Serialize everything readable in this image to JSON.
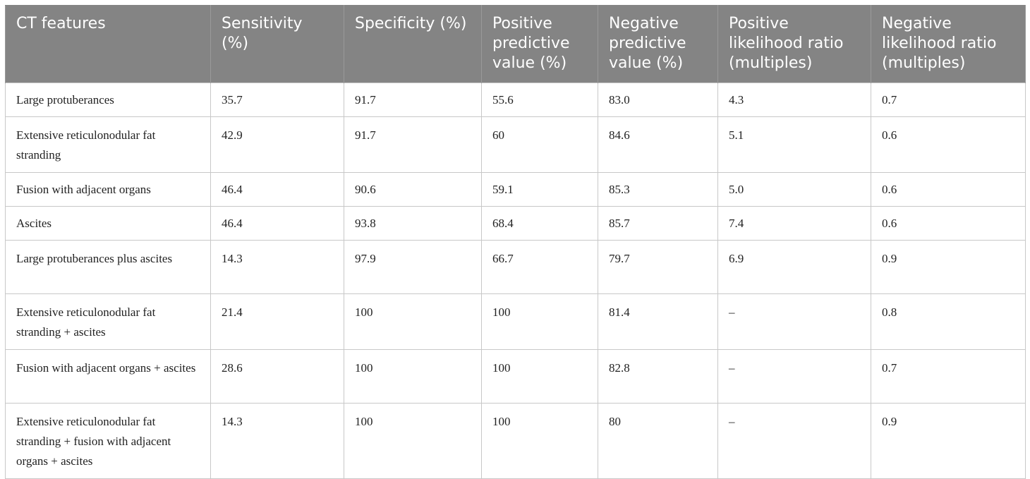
{
  "table": {
    "headers": [
      "CT features",
      "Sensitivity (%)",
      "Specificity (%)",
      "Positive predictive value (%)",
      "Negative predictive value (%)",
      "Positive likelihood ratio (multiples)",
      "Negative likelihood ratio (multiples)"
    ],
    "rows": [
      [
        "Large protuberances",
        "35.7",
        "91.7",
        "55.6",
        "83.0",
        "4.3",
        "0.7"
      ],
      [
        "Extensive reticulonodular fat stranding",
        "42.9",
        "91.7",
        "60",
        "84.6",
        "5.1",
        "0.6"
      ],
      [
        "Fusion with adjacent organs",
        "46.4",
        "90.6",
        "59.1",
        "85.3",
        "5.0",
        "0.6"
      ],
      [
        "Ascites",
        "46.4",
        "93.8",
        "68.4",
        "85.7",
        "7.4",
        "0.6"
      ],
      [
        "Large protuberances plus ascites",
        "14.3",
        "97.9",
        "66.7",
        "79.7",
        "6.9",
        "0.9"
      ],
      [
        "Extensive reticulonodular fat stranding + ascites",
        "21.4",
        "100",
        "100",
        "81.4",
        "–",
        "0.8"
      ],
      [
        "Fusion with adjacent organs + ascites",
        "28.6",
        "100",
        "100",
        "82.8",
        "–",
        "0.7"
      ],
      [
        "Extensive reticulonodular fat stranding + fusion with adjacent organs + ascites",
        "14.3",
        "100",
        "100",
        "80",
        "–",
        "0.9"
      ]
    ]
  },
  "colors": {
    "header_bg": "#848484",
    "header_text": "#ffffff",
    "grid": "#c8c8c8"
  }
}
